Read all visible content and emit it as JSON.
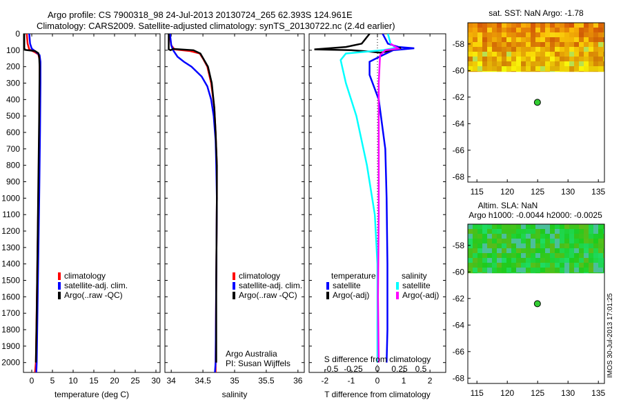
{
  "header": {
    "line1": "Argo profile: CS 7900318_98 24-Jul-2013 20130724_265 62.393S 124.961E",
    "line2": "Climatology: CARS2009. Satellite-adjusted climatology: synTS_20130722.nc (2.4d earlier)"
  },
  "colors": {
    "climatology": "#ff0000",
    "satellite": "#0000ff",
    "argo": "#000000",
    "sat_salinity": "#00ffff",
    "argo_salinity": "#ff00ff"
  },
  "chart_data": [
    {
      "type": "line",
      "name": "temperature",
      "xlabel": "temperature (deg C)",
      "xlim": [
        -2,
        31
      ],
      "ylim": [
        2060,
        0
      ],
      "x_ticks": [
        0,
        5,
        10,
        15,
        20,
        25,
        30
      ],
      "y_ticks": [
        0,
        100,
        200,
        300,
        400,
        500,
        600,
        700,
        800,
        900,
        1000,
        1100,
        1200,
        1300,
        1400,
        1500,
        1600,
        1700,
        1800,
        1900,
        2000
      ],
      "legend": [
        "climatology",
        "satellite-adj. clim.",
        "Argo(..raw -QC)"
      ],
      "series": [
        {
          "name": "climatology",
          "color": "#ff0000",
          "points": [
            [
              -1.2,
              0
            ],
            [
              -1.0,
              60
            ],
            [
              -0.6,
              95
            ],
            [
              0.6,
              110
            ],
            [
              1.6,
              125
            ],
            [
              1.9,
              160
            ],
            [
              1.9,
              300
            ],
            [
              1.8,
              600
            ],
            [
              1.6,
              1000
            ],
            [
              1.3,
              1500
            ],
            [
              1.0,
              2000
            ],
            [
              0.8,
              2060
            ]
          ]
        },
        {
          "name": "satellite-adj. clim.",
          "color": "#0000ff",
          "points": [
            [
              -0.6,
              0
            ],
            [
              -0.4,
              60
            ],
            [
              0.0,
              90
            ],
            [
              1.0,
              110
            ],
            [
              1.9,
              130
            ],
            [
              2.1,
              170
            ],
            [
              2.1,
              300
            ],
            [
              2.0,
              600
            ],
            [
              1.8,
              1000
            ],
            [
              1.5,
              1500
            ],
            [
              1.2,
              2000
            ],
            [
              1.1,
              2060
            ]
          ]
        },
        {
          "name": "Argo(..raw -QC)",
          "color": "#000000",
          "points": [
            [
              -1.8,
              0
            ],
            [
              -1.8,
              90
            ],
            [
              -1.5,
              98
            ],
            [
              0.8,
              105
            ],
            [
              1.6,
              118
            ],
            [
              1.8,
              140
            ],
            [
              1.9,
              200
            ],
            [
              1.8,
              500
            ],
            [
              1.6,
              900
            ],
            [
              1.4,
              1300
            ],
            [
              1.2,
              1700
            ],
            [
              1.0,
              2000
            ]
          ]
        }
      ]
    },
    {
      "type": "line",
      "name": "salinity",
      "xlabel": "salinity",
      "xlim": [
        33.9,
        36.1
      ],
      "ylim": [
        2060,
        0
      ],
      "x_ticks": [
        34,
        34.5,
        35,
        35.5,
        36
      ],
      "legend": [
        "climatology",
        "satellite-adj. clim.",
        "Argo(..raw -QC)"
      ],
      "annotation": [
        "Argo Australia",
        "PI: Susan Wijffels"
      ],
      "series": [
        {
          "name": "climatology",
          "color": "#ff0000",
          "points": [
            [
              33.97,
              0
            ],
            [
              34.0,
              70
            ],
            [
              34.05,
              95
            ],
            [
              34.3,
              105
            ],
            [
              34.45,
              120
            ],
            [
              34.5,
              150
            ],
            [
              34.57,
              200
            ],
            [
              34.63,
              300
            ],
            [
              34.68,
              450
            ],
            [
              34.7,
              600
            ],
            [
              34.72,
              800
            ],
            [
              34.72,
              1000
            ],
            [
              34.71,
              1500
            ],
            [
              34.7,
              2000
            ],
            [
              34.7,
              2060
            ]
          ]
        },
        {
          "name": "satellite-adj. clim.",
          "color": "#0000ff",
          "points": [
            [
              33.98,
              0
            ],
            [
              34.0,
              70
            ],
            [
              34.03,
              100
            ],
            [
              34.1,
              140
            ],
            [
              34.2,
              170
            ],
            [
              34.32,
              200
            ],
            [
              34.48,
              260
            ],
            [
              34.57,
              320
            ],
            [
              34.63,
              400
            ],
            [
              34.67,
              500
            ],
            [
              34.7,
              650
            ],
            [
              34.71,
              800
            ],
            [
              34.72,
              1000
            ],
            [
              34.71,
              1500
            ],
            [
              34.7,
              2000
            ],
            [
              34.69,
              2060
            ]
          ]
        },
        {
          "name": "Argo(..raw -QC)",
          "color": "#000000",
          "points": [
            [
              33.96,
              0
            ],
            [
              33.96,
              95
            ],
            [
              33.99,
              100
            ],
            [
              34.03,
              92
            ],
            [
              34.35,
              100
            ],
            [
              34.46,
              120
            ],
            [
              34.52,
              160
            ],
            [
              34.58,
              200
            ],
            [
              34.64,
              300
            ],
            [
              34.68,
              450
            ],
            [
              34.7,
              600
            ],
            [
              34.72,
              800
            ],
            [
              34.72,
              1000
            ],
            [
              34.71,
              1500
            ],
            [
              34.71,
              2000
            ]
          ]
        }
      ]
    },
    {
      "type": "line",
      "name": "difference",
      "xlabel": "T difference from climatology",
      "xlabel_top": "S difference from climatology",
      "xlim": [
        -2.6,
        2.6
      ],
      "ylim": [
        2060,
        0
      ],
      "x_ticks": [
        -2,
        -1,
        0,
        1,
        2
      ],
      "top_ticks": [
        "-0.5",
        "-0.25",
        "0",
        "0.25",
        "0.5"
      ],
      "legend_temperature_heading": "temperature",
      "legend_salinity_heading": "salinity",
      "legend": {
        "satellite_t": "satellite",
        "argo_t": "Argo(-adj)",
        "satellite_s": "satellite",
        "argo_s": "Argo(-adj)"
      },
      "series": [
        {
          "name": "temperature satellite",
          "color": "#0000ff",
          "points": [
            [
              0.2,
              0
            ],
            [
              0.4,
              60
            ],
            [
              0.8,
              80
            ],
            [
              1.4,
              88
            ],
            [
              0.6,
              100
            ],
            [
              0.2,
              130
            ],
            [
              -0.3,
              170
            ],
            [
              -0.3,
              250
            ],
            [
              0.05,
              400
            ],
            [
              0.3,
              700
            ],
            [
              0.35,
              1000
            ],
            [
              0.38,
              1400
            ],
            [
              0.38,
              1800
            ],
            [
              0.35,
              2000
            ]
          ]
        },
        {
          "name": "temperature Argo(-adj)",
          "color": "#000000",
          "points": [
            [
              -0.3,
              0
            ],
            [
              -0.6,
              60
            ],
            [
              -1.2,
              80
            ],
            [
              -2.4,
              95
            ],
            [
              -1.0,
              100
            ],
            [
              -0.3,
              108
            ],
            [
              0.1,
              115
            ],
            [
              0.3,
              110
            ],
            [
              0.6,
              95
            ],
            [
              0.9,
              85
            ]
          ]
        },
        {
          "name": "salinity satellite",
          "color": "#00ffff",
          "points": [
            [
              0.4,
              0
            ],
            [
              0.5,
              60
            ],
            [
              0.7,
              85
            ],
            [
              0.2,
              100
            ],
            [
              -1.2,
              120
            ],
            [
              -1.4,
              160
            ],
            [
              -1.2,
              300
            ],
            [
              -0.8,
              500
            ],
            [
              -0.4,
              800
            ],
            [
              -0.1,
              1100
            ],
            [
              0.0,
              1400
            ],
            [
              0.0,
              1800
            ],
            [
              0.0,
              2000
            ]
          ]
        },
        {
          "name": "salinity Argo(-adj)",
          "color": "#ff00ff",
          "points": [
            [
              0.5,
              60
            ],
            [
              0.8,
              90
            ],
            [
              0.3,
              100
            ],
            [
              0.1,
              130
            ],
            [
              0.05,
              300
            ],
            [
              0.05,
              700
            ],
            [
              0.05,
              1100
            ],
            [
              0.02,
              1600
            ],
            [
              0.05,
              2000
            ]
          ]
        }
      ]
    }
  ],
  "sst_map": {
    "title": "sat. SST: NaN Argo: -1.78",
    "x_ticks": [
      115,
      120,
      125,
      130,
      135
    ],
    "y_ticks": [
      -58,
      -60,
      -62,
      -64,
      -66,
      -68
    ],
    "xlim": [
      113.5,
      136
    ],
    "ylim": [
      -68.4,
      -56.4
    ],
    "data_bottom_lat": -60.1,
    "argo_lon": 124.961,
    "argo_lat": -62.393
  },
  "sla_map": {
    "title_line1": "Altim. SLA: NaN",
    "title_line2": "Argo h1000: -0.0044 h2000: -0.0025",
    "x_ticks": [
      115,
      120,
      125,
      130,
      135
    ],
    "y_ticks": [
      -58,
      -60,
      -62,
      -64,
      -66,
      -68
    ],
    "xlim": [
      113.5,
      136
    ],
    "ylim": [
      -68.4,
      -56.4
    ],
    "data_bottom_lat": -60.1,
    "argo_lon": 124.961,
    "argo_lat": -62.393
  },
  "side_note": "IMOS 30-Jul-2013 17:01:25"
}
